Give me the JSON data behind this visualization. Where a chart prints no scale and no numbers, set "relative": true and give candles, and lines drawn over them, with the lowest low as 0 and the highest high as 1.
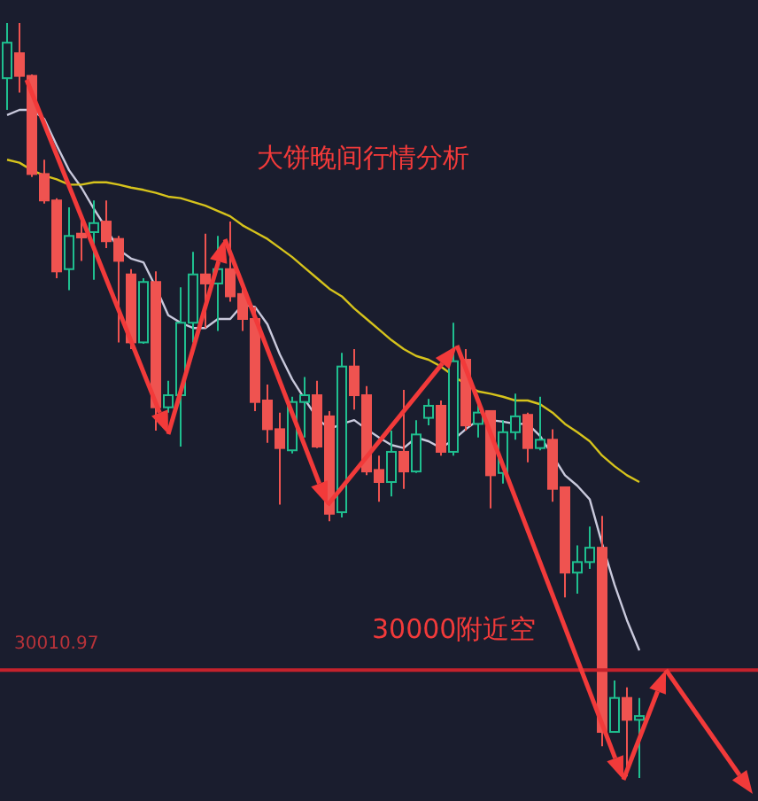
{
  "chart_data": {
    "type": "candlestick",
    "relative": true,
    "title": "大饼晚间行情分析",
    "annotations": [
      "30000附近空",
      "30010.97"
    ],
    "categories": [
      null,
      null,
      null,
      null,
      null,
      null,
      null,
      null,
      null,
      null,
      null,
      null,
      null,
      null,
      null,
      null,
      null,
      null,
      null,
      null,
      null,
      null,
      null,
      null,
      null,
      null,
      null,
      null,
      null,
      null,
      null,
      null,
      null,
      null,
      null,
      null,
      null,
      null,
      null,
      null,
      null,
      null,
      null,
      null,
      null,
      null,
      null,
      null,
      null,
      null,
      null,
      null
    ],
    "ohlc": [
      [
        0.927,
        1.0,
        0.885,
        0.974
      ],
      [
        0.96,
        1.0,
        0.908,
        0.93
      ],
      [
        0.93,
        0.932,
        0.796,
        0.8
      ],
      [
        0.8,
        0.819,
        0.761,
        0.765
      ],
      [
        0.765,
        0.768,
        0.662,
        0.671
      ],
      [
        0.674,
        0.756,
        0.646,
        0.718
      ],
      [
        0.721,
        0.744,
        0.685,
        0.716
      ],
      [
        0.723,
        0.765,
        0.66,
        0.735
      ],
      [
        0.737,
        0.765,
        0.702,
        0.711
      ],
      [
        0.714,
        0.718,
        0.577,
        0.685
      ],
      [
        0.667,
        0.674,
        0.568,
        0.577
      ],
      [
        0.577,
        0.662,
        0.575,
        0.657
      ],
      [
        0.657,
        0.671,
        0.46,
        0.491
      ],
      [
        0.491,
        0.526,
        0.484,
        0.507
      ],
      [
        0.507,
        0.65,
        0.439,
        0.603
      ],
      [
        0.603,
        0.697,
        0.577,
        0.667
      ],
      [
        0.667,
        0.721,
        0.596,
        0.655
      ],
      [
        0.655,
        0.718,
        0.592,
        0.674
      ],
      [
        0.674,
        0.737,
        0.631,
        0.638
      ],
      [
        0.641,
        0.648,
        0.592,
        0.608
      ],
      [
        0.608,
        0.624,
        0.486,
        0.498
      ],
      [
        0.5,
        0.521,
        0.444,
        0.462
      ],
      [
        0.462,
        0.484,
        0.362,
        0.437
      ],
      [
        0.434,
        0.505,
        0.43,
        0.498
      ],
      [
        0.498,
        0.531,
        0.451,
        0.507
      ],
      [
        0.507,
        0.526,
        0.437,
        0.439
      ],
      [
        0.479,
        0.486,
        0.34,
        0.35
      ],
      [
        0.352,
        0.563,
        0.345,
        0.545
      ],
      [
        0.545,
        0.568,
        0.488,
        0.507
      ],
      [
        0.507,
        0.519,
        0.401,
        0.406
      ],
      [
        0.408,
        0.427,
        0.366,
        0.392
      ],
      [
        0.392,
        0.46,
        0.373,
        0.432
      ],
      [
        0.432,
        0.514,
        0.383,
        0.406
      ],
      [
        0.406,
        0.474,
        0.404,
        0.455
      ],
      [
        0.477,
        0.502,
        0.467,
        0.493
      ],
      [
        0.493,
        0.5,
        0.427,
        0.432
      ],
      [
        0.432,
        0.603,
        0.427,
        0.552
      ],
      [
        0.554,
        0.568,
        0.46,
        0.467
      ],
      [
        0.469,
        0.498,
        0.451,
        0.484
      ],
      [
        0.486,
        0.486,
        0.357,
        0.401
      ],
      [
        0.404,
        0.474,
        0.39,
        0.458
      ],
      [
        0.458,
        0.509,
        0.448,
        0.479
      ],
      [
        0.481,
        0.484,
        0.418,
        0.437
      ],
      [
        0.437,
        0.505,
        0.434,
        0.448
      ],
      [
        0.448,
        0.462,
        0.366,
        0.383
      ],
      [
        0.385,
        0.385,
        0.239,
        0.272
      ],
      [
        0.272,
        0.308,
        0.244,
        0.286
      ],
      [
        0.286,
        0.333,
        0.277,
        0.305
      ],
      [
        0.305,
        0.347,
        0.042,
        0.061
      ],
      [
        0.061,
        0.129,
        0.061,
        0.106
      ],
      [
        0.106,
        0.12,
        0.002,
        0.077
      ],
      [
        0.077,
        0.106,
        0.0,
        0.082
      ]
    ],
    "colors": [
      "#1fbf8f",
      "#ef5350",
      "#ef5350",
      "#ef5350",
      "#ef5350",
      "#1fbf8f",
      "#ef5350",
      "#1fbf8f",
      "#ef5350",
      "#ef5350",
      "#ef5350",
      "#1fbf8f",
      "#ef5350",
      "#1fbf8f",
      "#1fbf8f",
      "#1fbf8f",
      "#ef5350",
      "#1fbf8f",
      "#ef5350",
      "#ef5350",
      "#ef5350",
      "#ef5350",
      "#ef5350",
      "#1fbf8f",
      "#1fbf8f",
      "#ef5350",
      "#ef5350",
      "#1fbf8f",
      "#ef5350",
      "#ef5350",
      "#ef5350",
      "#1fbf8f",
      "#ef5350",
      "#1fbf8f",
      "#1fbf8f",
      "#ef5350",
      "#1fbf8f",
      "#ef5350",
      "#1fbf8f",
      "#ef5350",
      "#1fbf8f",
      "#1fbf8f",
      "#ef5350",
      "#1fbf8f",
      "#ef5350",
      "#ef5350",
      "#1fbf8f",
      "#1fbf8f",
      "#ef5350",
      "#1fbf8f",
      "#ef5350",
      "#1fbf8f"
    ],
    "series": [
      {
        "type": "line",
        "color": "#c9c9dc",
        "values": [
          0.878,
          0.885,
          0.885,
          0.873,
          0.838,
          0.805,
          0.782,
          0.754,
          0.728,
          0.7,
          0.688,
          0.683,
          0.65,
          0.613,
          0.603,
          0.596,
          0.596,
          0.608,
          0.608,
          0.627,
          0.624,
          0.601,
          0.561,
          0.528,
          0.502,
          0.477,
          0.462,
          0.469,
          0.474,
          0.462,
          0.451,
          0.441,
          0.437,
          0.451,
          0.446,
          0.437,
          0.448,
          0.462,
          0.474,
          0.474,
          0.472,
          0.469,
          0.469,
          0.453,
          0.427,
          0.401,
          0.387,
          0.369,
          0.31,
          0.256,
          0.209,
          0.169
        ]
      },
      {
        "type": "line",
        "color": "#d6c31c",
        "values": [
          0.819,
          0.815,
          0.805,
          0.798,
          0.793,
          0.786,
          0.786,
          0.789,
          0.789,
          0.786,
          0.782,
          0.779,
          0.775,
          0.77,
          0.768,
          0.763,
          0.758,
          0.751,
          0.744,
          0.732,
          0.723,
          0.714,
          0.702,
          0.69,
          0.676,
          0.662,
          0.648,
          0.638,
          0.622,
          0.608,
          0.594,
          0.58,
          0.568,
          0.559,
          0.554,
          0.545,
          0.533,
          0.521,
          0.512,
          0.509,
          0.505,
          0.5,
          0.5,
          0.495,
          0.484,
          0.469,
          0.458,
          0.446,
          0.427,
          0.413,
          0.401,
          0.392
        ]
      }
    ],
    "ref_lines": [
      {
        "axis": "y",
        "value": 0.143,
        "color": "#c4222c"
      }
    ]
  }
}
